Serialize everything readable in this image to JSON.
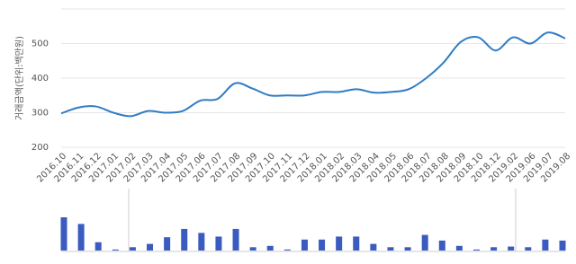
{
  "chart_data": [
    {
      "type": "line",
      "y_label": "거래금액(단위:백만원)",
      "color": "#2f7cc4",
      "categories": [
        "2016.10",
        "2016.11",
        "2016.12",
        "2017.01",
        "2017.02",
        "2017.03",
        "2017.04",
        "2017.05",
        "2017.06",
        "2017.07",
        "2017.08",
        "2017.09",
        "2017.10",
        "2017.11",
        "2017.12",
        "2018.01",
        "2018.02",
        "2018.03",
        "2018.04",
        "2018.05",
        "2018.06",
        "2018.07",
        "2018.08",
        "2018.09",
        "2018.10",
        "2018.12",
        "2019.02",
        "2019.06",
        "2019.07",
        "2019.08"
      ],
      "values": [
        298,
        315,
        318,
        300,
        290,
        305,
        300,
        305,
        335,
        340,
        385,
        370,
        350,
        350,
        350,
        360,
        360,
        368,
        358,
        360,
        368,
        400,
        445,
        505,
        518,
        480,
        518,
        500,
        532,
        515
      ],
      "ylim": [
        200,
        600
      ],
      "yticks": [
        200,
        300,
        400,
        500
      ],
      "grid": true
    },
    {
      "type": "bar",
      "color": "#3a5bbf",
      "values": [
        10,
        8,
        2.5,
        0.3,
        1,
        2,
        4,
        6.5,
        5.3,
        4.2,
        6.5,
        1,
        1.4,
        0.3,
        3.3,
        3.3,
        4.2,
        4.2,
        2,
        1,
        1,
        4.7,
        3,
        1.4,
        0.3,
        1,
        1.2,
        1,
        3.3,
        3
      ],
      "ylim": [
        0,
        10
      ]
    }
  ]
}
